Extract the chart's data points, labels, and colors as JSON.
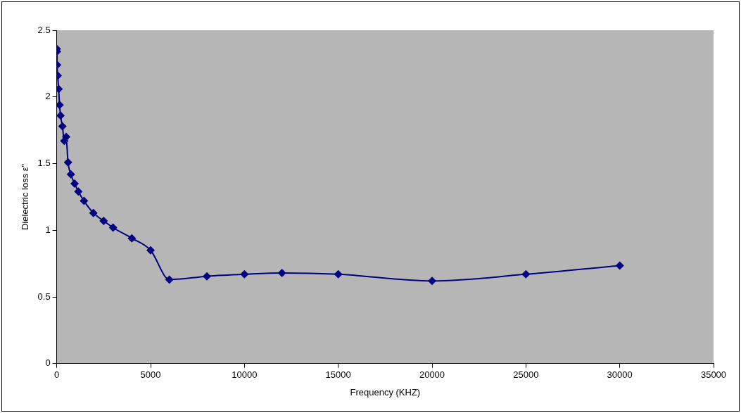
{
  "chart_data": {
    "type": "line",
    "xlabel": "Frequency (KHZ)",
    "ylabel": "Dielectric loss ε\"",
    "x": [
      0,
      10,
      20,
      50,
      100,
      150,
      200,
      300,
      400,
      500,
      600,
      750,
      950,
      1150,
      1450,
      1950,
      2500,
      3000,
      4000,
      5000,
      6000,
      8000,
      10000,
      12000,
      15000,
      20000,
      25000,
      30000
    ],
    "series": [
      {
        "color": "#000080",
        "values": [
          2.36,
          2.34,
          2.24,
          2.16,
          2.06,
          1.94,
          1.86,
          1.78,
          1.67,
          1.7,
          1.51,
          1.42,
          1.35,
          1.29,
          1.22,
          1.13,
          1.07,
          1.02,
          0.94,
          0.85,
          0.63,
          0.655,
          0.67,
          0.68,
          0.67,
          0.62,
          0.67,
          0.735
        ]
      }
    ],
    "xlim": [
      0,
      35000
    ],
    "xticks": [
      0,
      5000,
      10000,
      15000,
      20000,
      25000,
      30000,
      35000
    ],
    "ylim": [
      0,
      2.5
    ],
    "yticks": [
      0,
      0.5,
      1,
      1.5,
      2,
      2.5
    ],
    "grid": false,
    "legend": false,
    "marker": "diamond",
    "line_style": "solid"
  }
}
